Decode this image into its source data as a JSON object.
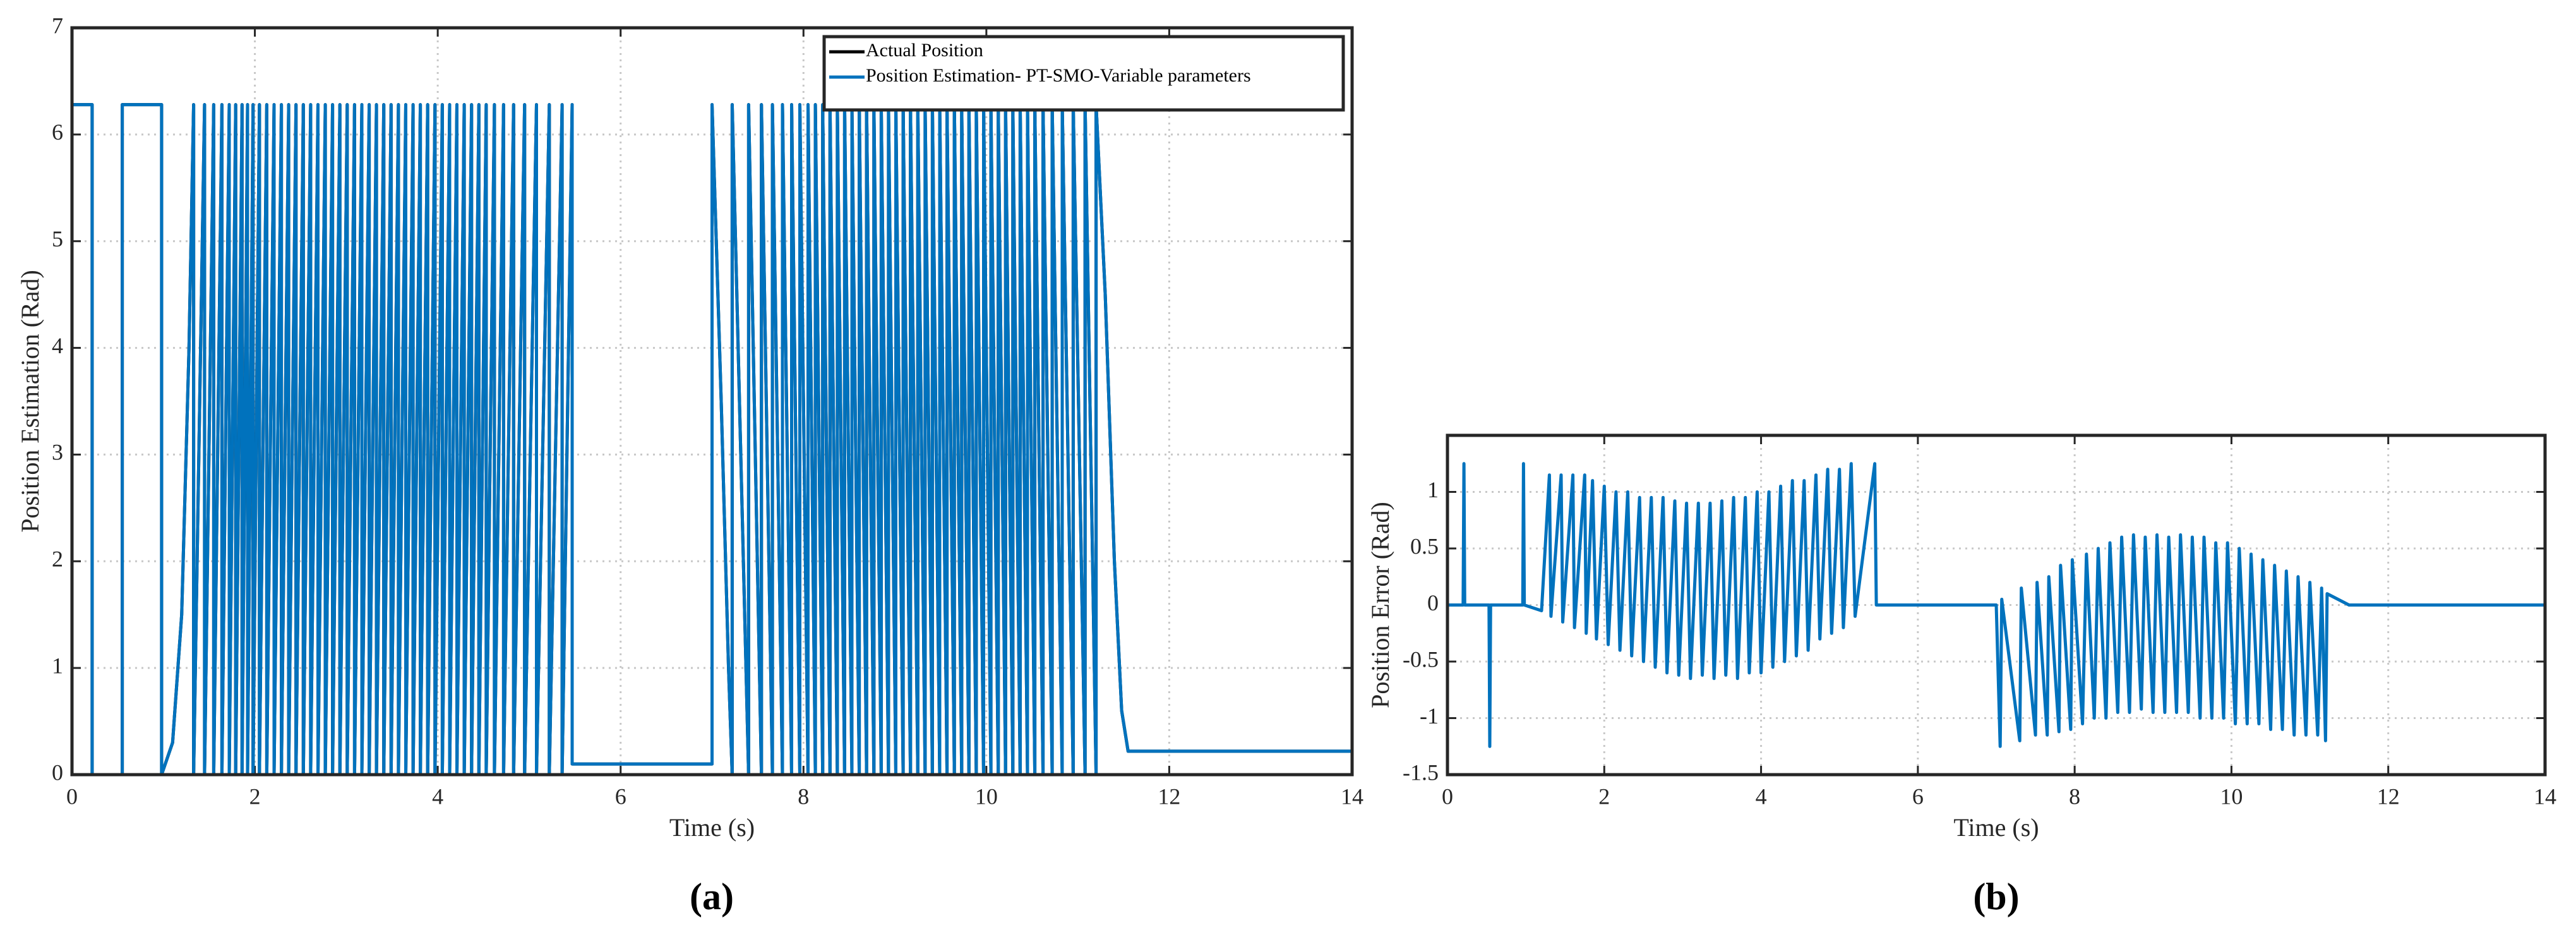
{
  "chart_data": [
    {
      "type": "line",
      "label": "(a)",
      "xlabel": "Time (s)",
      "ylabel": "Position Estimation (Rad)",
      "xlim": [
        0,
        14
      ],
      "xticks": [
        0,
        2,
        4,
        6,
        8,
        10,
        12,
        14
      ],
      "ylim": [
        0,
        7
      ],
      "yticks": [
        0,
        1,
        2,
        3,
        4,
        5,
        6,
        7
      ],
      "grid": true,
      "legend": "top-right",
      "x": [
        0,
        0,
        0.22,
        0.22,
        0.55,
        0.55,
        0.98,
        0.98,
        1.1,
        1.2,
        1.28,
        1.33,
        1.33,
        1.45,
        1.45,
        1.55,
        1.55,
        1.64,
        1.64,
        1.72,
        1.72,
        1.79,
        1.79,
        1.86,
        1.86,
        1.92,
        1.92,
        1.98,
        1.98,
        2.05,
        2.05,
        2.13,
        2.13,
        2.21,
        2.21,
        2.29,
        2.29,
        2.37,
        2.37,
        2.45,
        2.45,
        2.53,
        2.53,
        2.61,
        2.61,
        2.69,
        2.69,
        2.77,
        2.77,
        2.85,
        2.85,
        2.93,
        2.93,
        3.01,
        3.01,
        3.09,
        3.09,
        3.17,
        3.17,
        3.25,
        3.25,
        3.33,
        3.33,
        3.41,
        3.41,
        3.49,
        3.49,
        3.57,
        3.57,
        3.65,
        3.65,
        3.73,
        3.73,
        3.81,
        3.81,
        3.89,
        3.89,
        3.97,
        3.97,
        4.05,
        4.05,
        4.13,
        4.13,
        4.21,
        4.21,
        4.29,
        4.29,
        4.37,
        4.37,
        4.45,
        4.45,
        4.53,
        4.53,
        4.62,
        4.62,
        4.72,
        4.72,
        4.83,
        4.83,
        4.95,
        4.95,
        5.08,
        5.08,
        5.22,
        5.22,
        5.36,
        5.36,
        5.47,
        5.47,
        7.0,
        7.0,
        7.1,
        7.18,
        7.22,
        7.22,
        7.4,
        7.4,
        7.54,
        7.54,
        7.66,
        7.66,
        7.77,
        7.77,
        7.87,
        7.87,
        7.96,
        7.96,
        8.05,
        8.05,
        8.13,
        8.13,
        8.21,
        8.21,
        8.29,
        8.29,
        8.37,
        8.37,
        8.45,
        8.45,
        8.53,
        8.53,
        8.61,
        8.61,
        8.69,
        8.69,
        8.77,
        8.77,
        8.85,
        8.85,
        8.93,
        8.93,
        9.01,
        9.01,
        9.09,
        9.09,
        9.17,
        9.17,
        9.25,
        9.25,
        9.33,
        9.33,
        9.41,
        9.41,
        9.49,
        9.49,
        9.57,
        9.57,
        9.65,
        9.65,
        9.73,
        9.73,
        9.81,
        9.81,
        9.89,
        9.89,
        9.97,
        9.97,
        10.05,
        10.05,
        10.13,
        10.13,
        10.21,
        10.21,
        10.29,
        10.29,
        10.37,
        10.37,
        10.45,
        10.45,
        10.53,
        10.53,
        10.62,
        10.62,
        10.72,
        10.72,
        10.83,
        10.83,
        10.95,
        10.95,
        11.08,
        11.08,
        11.2,
        11.2,
        11.3,
        11.4,
        11.48,
        11.55,
        14
      ],
      "series": [
        {
          "name": "Actual Position",
          "color": "#000000",
          "values": [
            0,
            6.28,
            6.28,
            0,
            0,
            6.28,
            6.28,
            0,
            0.3,
            1.5,
            4,
            6.28,
            0,
            6.28,
            0,
            6.28,
            0,
            6.28,
            0,
            6.28,
            0,
            6.28,
            0,
            6.28,
            0,
            6.28,
            0,
            6.28,
            0,
            6.28,
            0,
            6.28,
            0,
            6.28,
            0,
            6.28,
            0,
            6.28,
            0,
            6.28,
            0,
            6.28,
            0,
            6.28,
            0,
            6.28,
            0,
            6.28,
            0,
            6.28,
            0,
            6.28,
            0,
            6.28,
            0,
            6.28,
            0,
            6.28,
            0,
            6.28,
            0,
            6.28,
            0,
            6.28,
            0,
            6.28,
            0,
            6.28,
            0,
            6.28,
            0,
            6.28,
            0,
            6.28,
            0,
            6.28,
            0,
            6.28,
            0,
            6.28,
            0,
            6.28,
            0,
            6.28,
            0,
            6.28,
            0,
            6.28,
            0,
            6.28,
            0,
            6.28,
            0,
            6.28,
            0,
            6.28,
            0,
            6.28,
            0,
            6.28,
            0,
            6.28,
            0,
            6.28,
            0,
            6.28,
            0,
            6.28,
            0.1,
            0.1,
            6.28,
            3.5,
            1.0,
            0,
            6.28,
            0,
            6.28,
            0,
            6.28,
            0,
            6.28,
            0,
            6.28,
            0,
            6.28,
            0,
            6.28,
            0,
            6.28,
            0,
            6.28,
            0,
            6.28,
            0,
            6.28,
            0,
            6.28,
            0,
            6.28,
            0,
            6.28,
            0,
            6.28,
            0,
            6.28,
            0,
            6.28,
            0,
            6.28,
            0,
            6.28,
            0,
            6.28,
            0,
            6.28,
            0,
            6.28,
            0,
            6.28,
            0,
            6.28,
            0,
            6.28,
            0,
            6.28,
            0,
            6.28,
            0,
            6.28,
            0,
            6.28,
            0,
            6.28,
            0,
            6.28,
            0,
            6.28,
            0,
            6.28,
            0,
            6.28,
            0,
            6.28,
            0,
            6.28,
            0,
            6.28,
            0,
            6.28,
            0,
            6.28,
            0,
            6.28,
            0,
            6.28,
            0,
            6.28,
            0,
            6.28,
            0,
            6.28,
            0,
            6.28,
            4.5,
            2.0,
            0.6,
            0.22,
            0.22
          ]
        },
        {
          "name": "Position Estimation- PT-SMO-Variable parameters",
          "color": "#0072bd",
          "values": [
            0,
            6.28,
            6.28,
            0,
            0,
            6.28,
            6.28,
            0,
            0.3,
            1.5,
            4,
            6.28,
            0,
            6.28,
            0,
            6.28,
            0,
            6.28,
            0,
            6.28,
            0,
            6.28,
            0,
            6.28,
            0,
            6.28,
            0,
            6.28,
            0,
            6.28,
            0,
            6.28,
            0,
            6.28,
            0,
            6.28,
            0,
            6.28,
            0,
            6.28,
            0,
            6.28,
            0,
            6.28,
            0,
            6.28,
            0,
            6.28,
            0,
            6.28,
            0,
            6.28,
            0,
            6.28,
            0,
            6.28,
            0,
            6.28,
            0,
            6.28,
            0,
            6.28,
            0,
            6.28,
            0,
            6.28,
            0,
            6.28,
            0,
            6.28,
            0,
            6.28,
            0,
            6.28,
            0,
            6.28,
            0,
            6.28,
            0,
            6.28,
            0,
            6.28,
            0,
            6.28,
            0,
            6.28,
            0,
            6.28,
            0,
            6.28,
            0,
            6.28,
            0,
            6.28,
            0,
            6.28,
            0,
            6.28,
            0,
            6.28,
            0,
            6.28,
            0,
            6.28,
            0,
            6.28,
            0,
            6.28,
            0.1,
            0.1,
            6.28,
            3.5,
            1.0,
            0,
            6.28,
            0,
            6.28,
            0,
            6.28,
            0,
            6.28,
            0,
            6.28,
            0,
            6.28,
            0,
            6.28,
            0,
            6.28,
            0,
            6.28,
            0,
            6.28,
            0,
            6.28,
            0,
            6.28,
            0,
            6.28,
            0,
            6.28,
            0,
            6.28,
            0,
            6.28,
            0,
            6.28,
            0,
            6.28,
            0,
            6.28,
            0,
            6.28,
            0,
            6.28,
            0,
            6.28,
            0,
            6.28,
            0,
            6.28,
            0,
            6.28,
            0,
            6.28,
            0,
            6.28,
            0,
            6.28,
            0,
            6.28,
            0,
            6.28,
            0,
            6.28,
            0,
            6.28,
            0,
            6.28,
            0,
            6.28,
            0,
            6.28,
            0,
            6.28,
            0,
            6.28,
            0,
            6.28,
            0,
            6.28,
            0,
            6.28,
            0,
            6.28,
            0,
            6.28,
            0,
            6.28,
            0,
            6.28,
            0,
            6.28,
            4.5,
            2.0,
            0.6,
            0.22,
            0.22
          ]
        }
      ]
    },
    {
      "type": "line",
      "label": "(b)",
      "xlabel": "Time (s)",
      "ylabel": "Position Error (Rad)",
      "xlim": [
        0,
        14
      ],
      "xticks": [
        0,
        2,
        4,
        6,
        8,
        10,
        12,
        14
      ],
      "ylim": [
        -1.5,
        1.5
      ],
      "yticks": [
        -1.5,
        -1,
        -0.5,
        0,
        0.5,
        1
      ],
      "grid": true,
      "x": [
        0,
        0.2,
        0.21,
        0.22,
        0.53,
        0.54,
        0.55,
        0.96,
        0.97,
        0.98,
        1.2,
        1.3,
        1.32,
        1.45,
        1.47,
        1.6,
        1.62,
        1.75,
        1.77,
        1.85,
        1.9,
        2.0,
        2.05,
        2.15,
        2.2,
        2.3,
        2.35,
        2.45,
        2.5,
        2.6,
        2.65,
        2.75,
        2.8,
        2.9,
        2.95,
        3.05,
        3.1,
        3.2,
        3.25,
        3.35,
        3.4,
        3.5,
        3.55,
        3.65,
        3.7,
        3.8,
        3.85,
        3.95,
        4.0,
        4.1,
        4.15,
        4.25,
        4.3,
        4.4,
        4.45,
        4.55,
        4.6,
        4.7,
        4.75,
        4.85,
        4.9,
        5.0,
        5.05,
        5.15,
        5.2,
        5.45,
        5.47,
        7.0,
        7.05,
        7.07,
        7.3,
        7.32,
        7.5,
        7.52,
        7.65,
        7.67,
        7.8,
        7.82,
        7.95,
        7.97,
        8.1,
        8.15,
        8.25,
        8.3,
        8.4,
        8.45,
        8.55,
        8.6,
        8.7,
        8.75,
        8.85,
        8.9,
        9.0,
        9.05,
        9.15,
        9.2,
        9.3,
        9.35,
        9.45,
        9.5,
        9.6,
        9.65,
        9.75,
        9.8,
        9.9,
        9.95,
        10.05,
        10.1,
        10.2,
        10.25,
        10.35,
        10.4,
        10.5,
        10.55,
        10.65,
        10.7,
        10.8,
        10.85,
        10.95,
        11.0,
        11.1,
        11.15,
        11.2,
        11.22,
        11.5,
        14
      ],
      "series": [
        {
          "color": "#0072bd",
          "values": [
            0,
            0,
            1.25,
            0,
            0,
            -1.25,
            0,
            0,
            1.25,
            0,
            -0.05,
            1.15,
            -0.1,
            1.15,
            -0.15,
            1.15,
            -0.2,
            1.15,
            -0.25,
            1.1,
            -0.3,
            1.05,
            -0.35,
            1.0,
            -0.4,
            1.0,
            -0.45,
            0.95,
            -0.5,
            0.95,
            -0.55,
            0.95,
            -0.6,
            0.92,
            -0.62,
            0.9,
            -0.65,
            0.9,
            -0.62,
            0.9,
            -0.65,
            0.92,
            -0.62,
            0.95,
            -0.65,
            0.95,
            -0.6,
            1.0,
            -0.6,
            1.0,
            -0.55,
            1.05,
            -0.5,
            1.1,
            -0.45,
            1.1,
            -0.4,
            1.15,
            -0.3,
            1.2,
            -0.25,
            1.2,
            -0.2,
            1.25,
            -0.1,
            1.25,
            0,
            0,
            -1.25,
            0.05,
            -1.2,
            0.15,
            -1.15,
            0.2,
            -1.15,
            0.25,
            -1.12,
            0.35,
            -1.1,
            0.4,
            -1.05,
            0.45,
            -1.0,
            0.5,
            -1.0,
            0.55,
            -0.95,
            0.6,
            -0.95,
            0.62,
            -0.92,
            0.6,
            -0.95,
            0.62,
            -0.95,
            0.6,
            -0.95,
            0.62,
            -0.95,
            0.6,
            -1.0,
            0.6,
            -1.0,
            0.55,
            -1.0,
            0.55,
            -1.05,
            0.5,
            -1.05,
            0.45,
            -1.05,
            0.4,
            -1.1,
            0.35,
            -1.1,
            0.3,
            -1.15,
            0.25,
            -1.15,
            0.2,
            -1.15,
            0.15,
            -1.2,
            0.1,
            0,
            0
          ]
        }
      ]
    }
  ]
}
